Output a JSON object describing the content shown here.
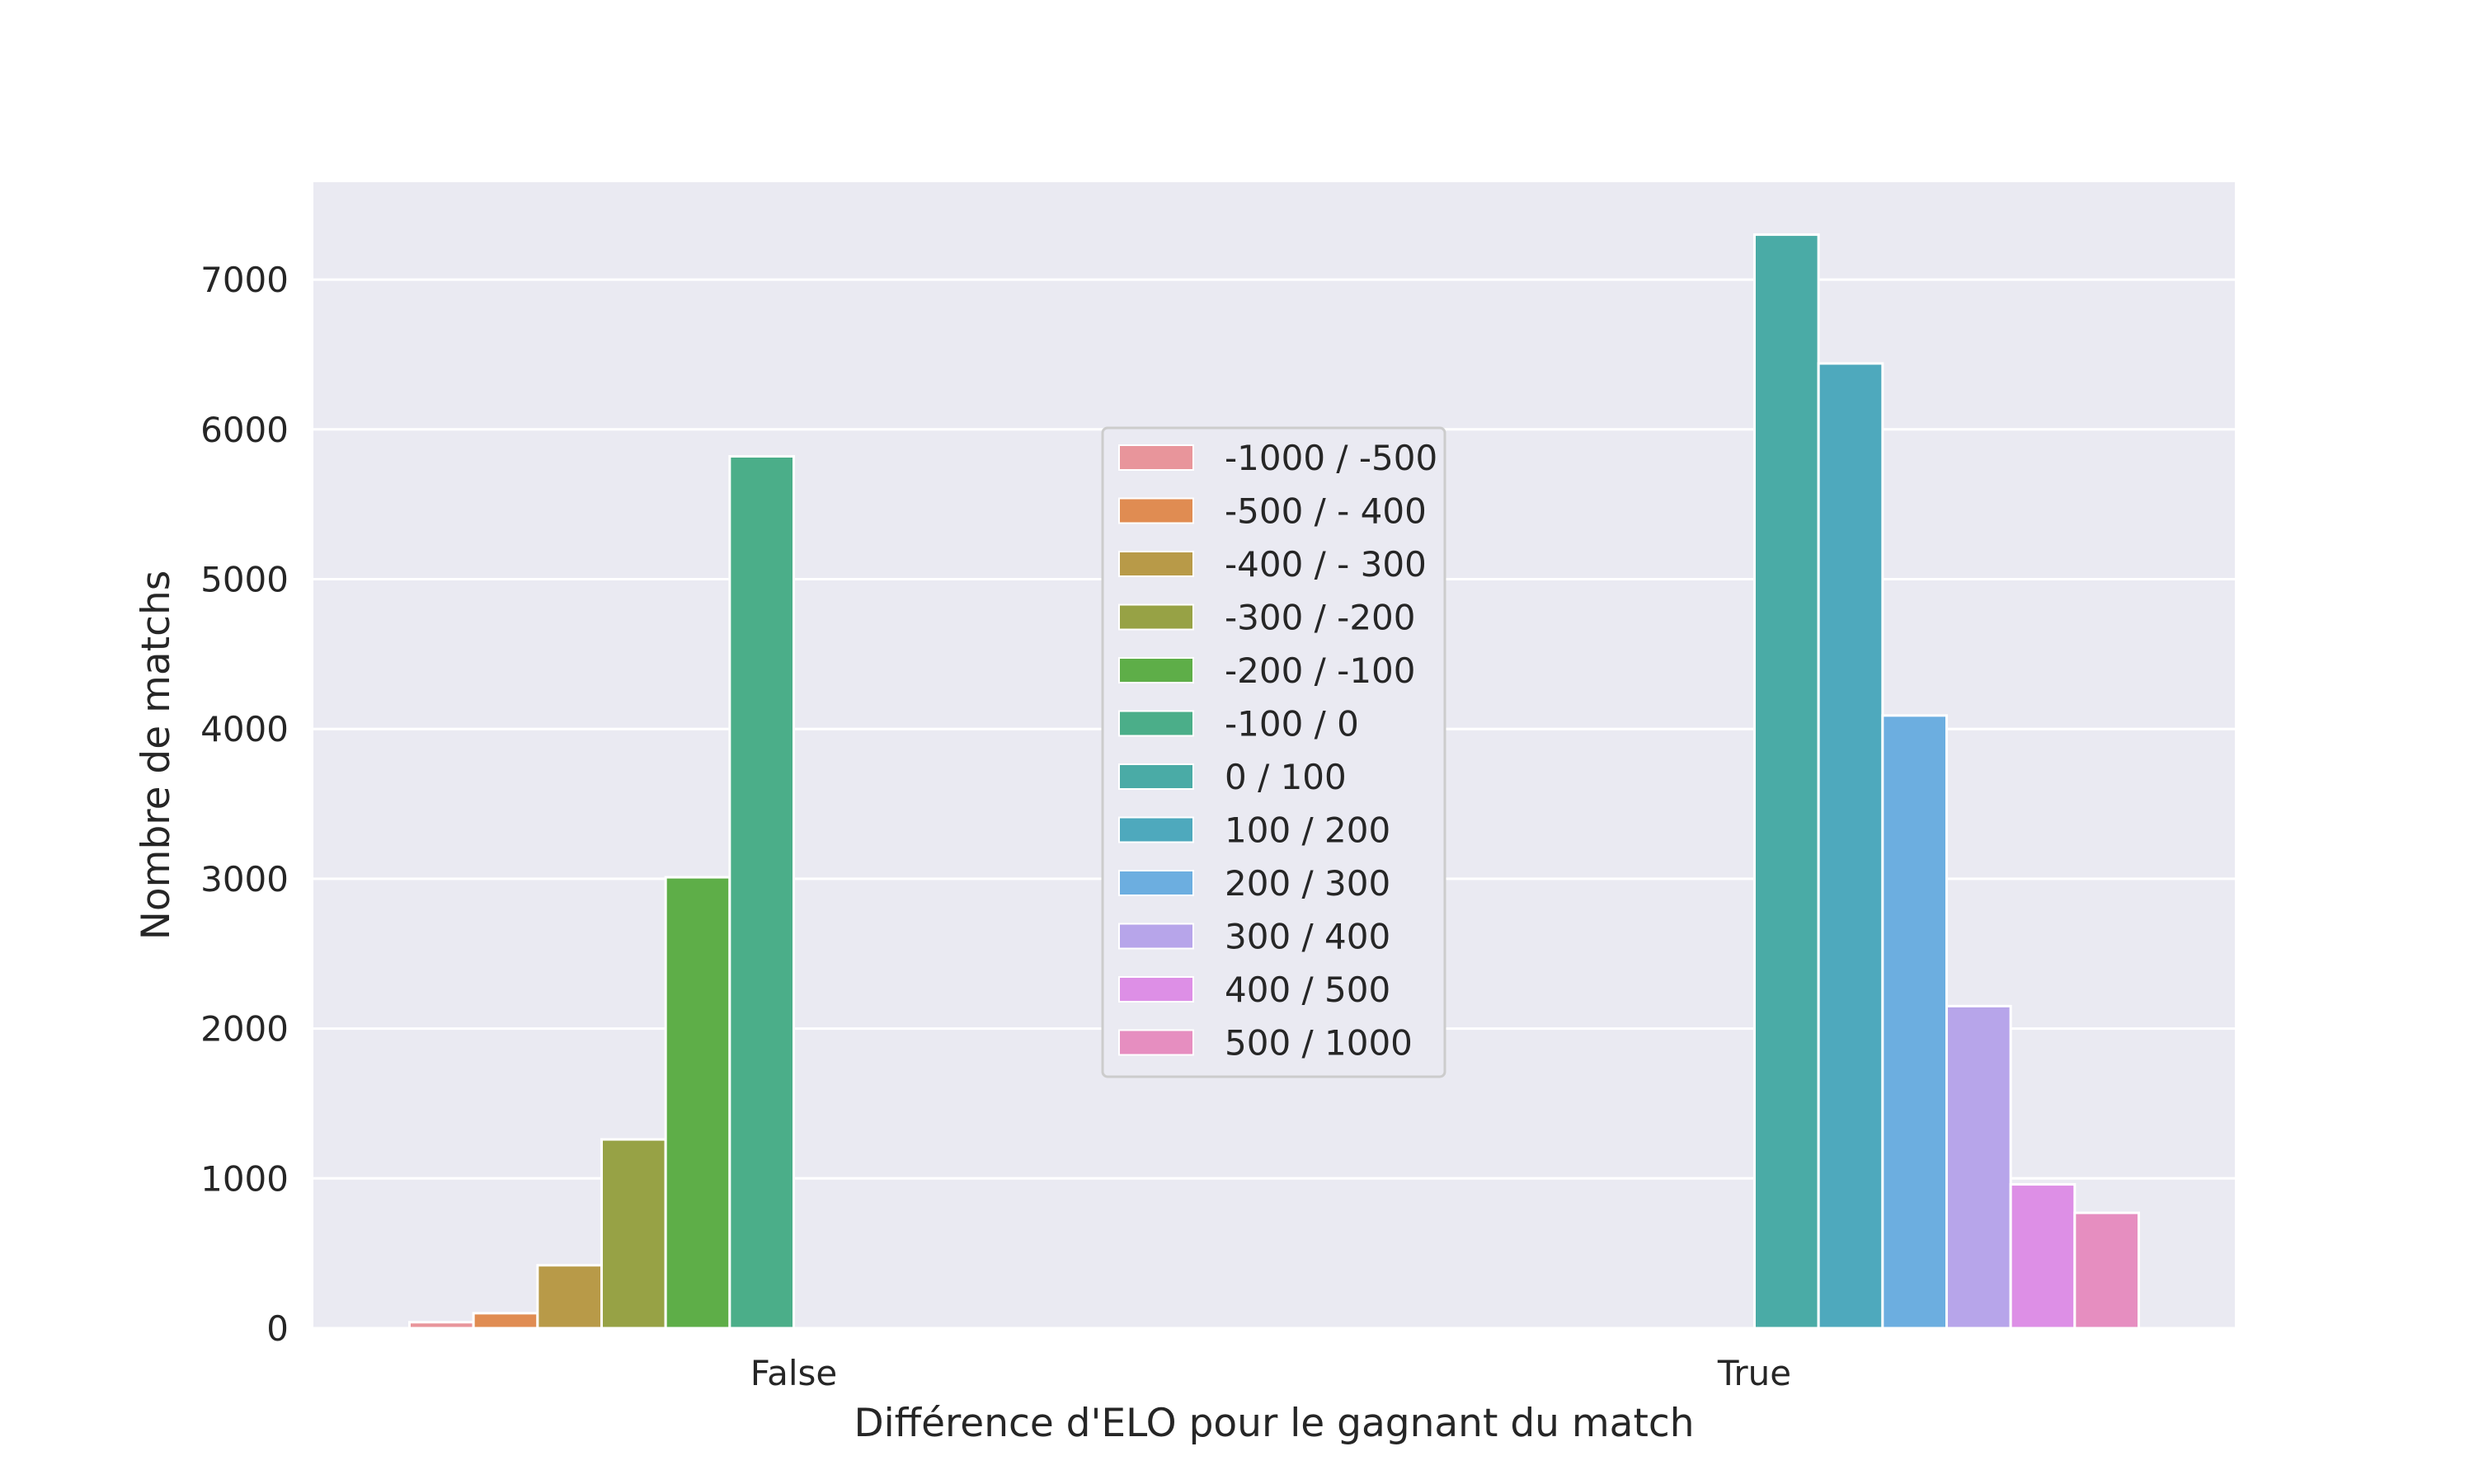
{
  "chart_data": {
    "type": "bar",
    "title": "",
    "xlabel": "Différence d'ELO pour le gagnant du match",
    "ylabel": "Nombre de matchs",
    "categories": [
      "False",
      "True"
    ],
    "ylim": [
      0,
      7650
    ],
    "yticks": [
      0,
      1000,
      2000,
      3000,
      4000,
      5000,
      6000,
      7000
    ],
    "ytick_labels": [
      "0",
      "1000",
      "2000",
      "3000",
      "4000",
      "5000",
      "6000",
      "7000"
    ],
    "grid": true,
    "legend_position": "center",
    "background_color": "#eaeaf2",
    "series": [
      {
        "name": "-1000 / -500",
        "color": "#e8959b",
        "values": [
          40,
          0
        ]
      },
      {
        "name": "-500 / - 400",
        "color": "#e08c52",
        "values": [
          100,
          0
        ]
      },
      {
        "name": "-400 / - 300",
        "color": "#b89a48",
        "values": [
          420,
          0
        ]
      },
      {
        "name": "-300 / -200",
        "color": "#97a245",
        "values": [
          1260,
          0
        ]
      },
      {
        "name": "-200 / -100",
        "color": "#5eae48",
        "values": [
          3010,
          0
        ]
      },
      {
        "name": "-100 / 0",
        "color": "#4bae89",
        "values": [
          5820,
          0
        ]
      },
      {
        "name": "0 / 100",
        "color": "#4aaba6",
        "values": [
          0,
          7300
        ]
      },
      {
        "name": "100 / 200",
        "color": "#4ea9bd",
        "values": [
          0,
          6440
        ]
      },
      {
        "name": "200 / 300",
        "color": "#6caee0",
        "values": [
          0,
          4090
        ]
      },
      {
        "name": "300 / 400",
        "color": "#b7a5ea",
        "values": [
          0,
          2150
        ]
      },
      {
        "name": "400 / 500",
        "color": "#dd8fe6",
        "values": [
          0,
          960
        ]
      },
      {
        "name": "500 / 1000",
        "color": "#e68ec0",
        "values": [
          0,
          770
        ]
      }
    ]
  }
}
